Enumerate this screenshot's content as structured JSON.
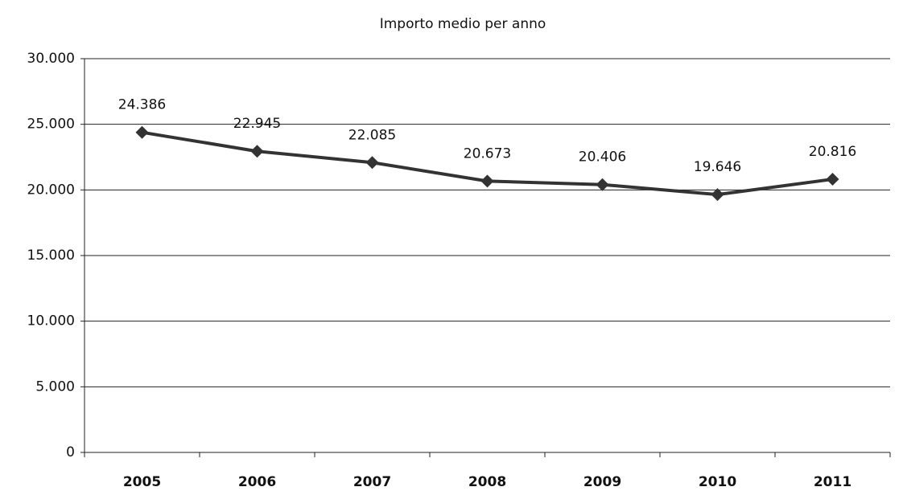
{
  "chart_data": {
    "type": "line",
    "title": "Importo medio per anno",
    "categories": [
      "2005",
      "2006",
      "2007",
      "2008",
      "2009",
      "2010",
      "2011"
    ],
    "values": [
      24386,
      22945,
      22085,
      20673,
      20406,
      19646,
      20816
    ],
    "value_labels": [
      "24.386",
      "22.945",
      "22.085",
      "20.673",
      "20.406",
      "19.646",
      "20.816"
    ],
    "color": "#333333",
    "ylim": [
      0,
      30000
    ],
    "yticks": [
      0,
      {
        "value": 5000,
        "label": "5.000"
      },
      {
        "value": 10000,
        "label": "10.000"
      },
      {
        "value": 15000,
        "label": "15.000"
      },
      {
        "value": 20000,
        "label": "20.000"
      },
      {
        "value": 25000,
        "label": "25.000"
      },
      {
        "value": 30000,
        "label": "30.000"
      }
    ],
    "grid": true
  }
}
